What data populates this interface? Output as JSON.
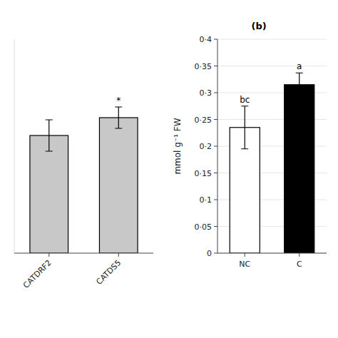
{
  "chart_data": [
    {
      "type": "bar",
      "categories": [
        "CATDRF2",
        "CATDS5"
      ],
      "values": [
        0.165,
        0.19
      ],
      "errors": [
        0.022,
        0.015
      ],
      "annotations": [
        null,
        "*"
      ],
      "color": "#c8c8c8",
      "ylim": [
        0,
        0.3
      ],
      "tick_labels": "x"
    },
    {
      "type": "bar",
      "title": "(b)",
      "y_label": "mmol g⁻¹ FW",
      "categories": [
        "NC",
        "C"
      ],
      "values": [
        0.235,
        0.315
      ],
      "errors": [
        0.04,
        0.022
      ],
      "annotations": [
        "bc",
        "a"
      ],
      "colors": [
        "#ffffff",
        "#000000"
      ],
      "ylim": [
        0,
        0.4
      ],
      "yticks": [
        0,
        {
          "value": 0.05,
          "label": "0·05"
        },
        {
          "value": 0.1,
          "label": "0·1"
        },
        {
          "value": 0.15,
          "label": "0·15"
        },
        {
          "value": 0.2,
          "label": "0·2"
        },
        {
          "value": 0.25,
          "label": "0·25"
        },
        {
          "value": 0.3,
          "label": "0·3"
        },
        {
          "value": 0.35,
          "label": "0·35"
        },
        {
          "value": 0.4,
          "label": "0·4"
        }
      ]
    }
  ]
}
